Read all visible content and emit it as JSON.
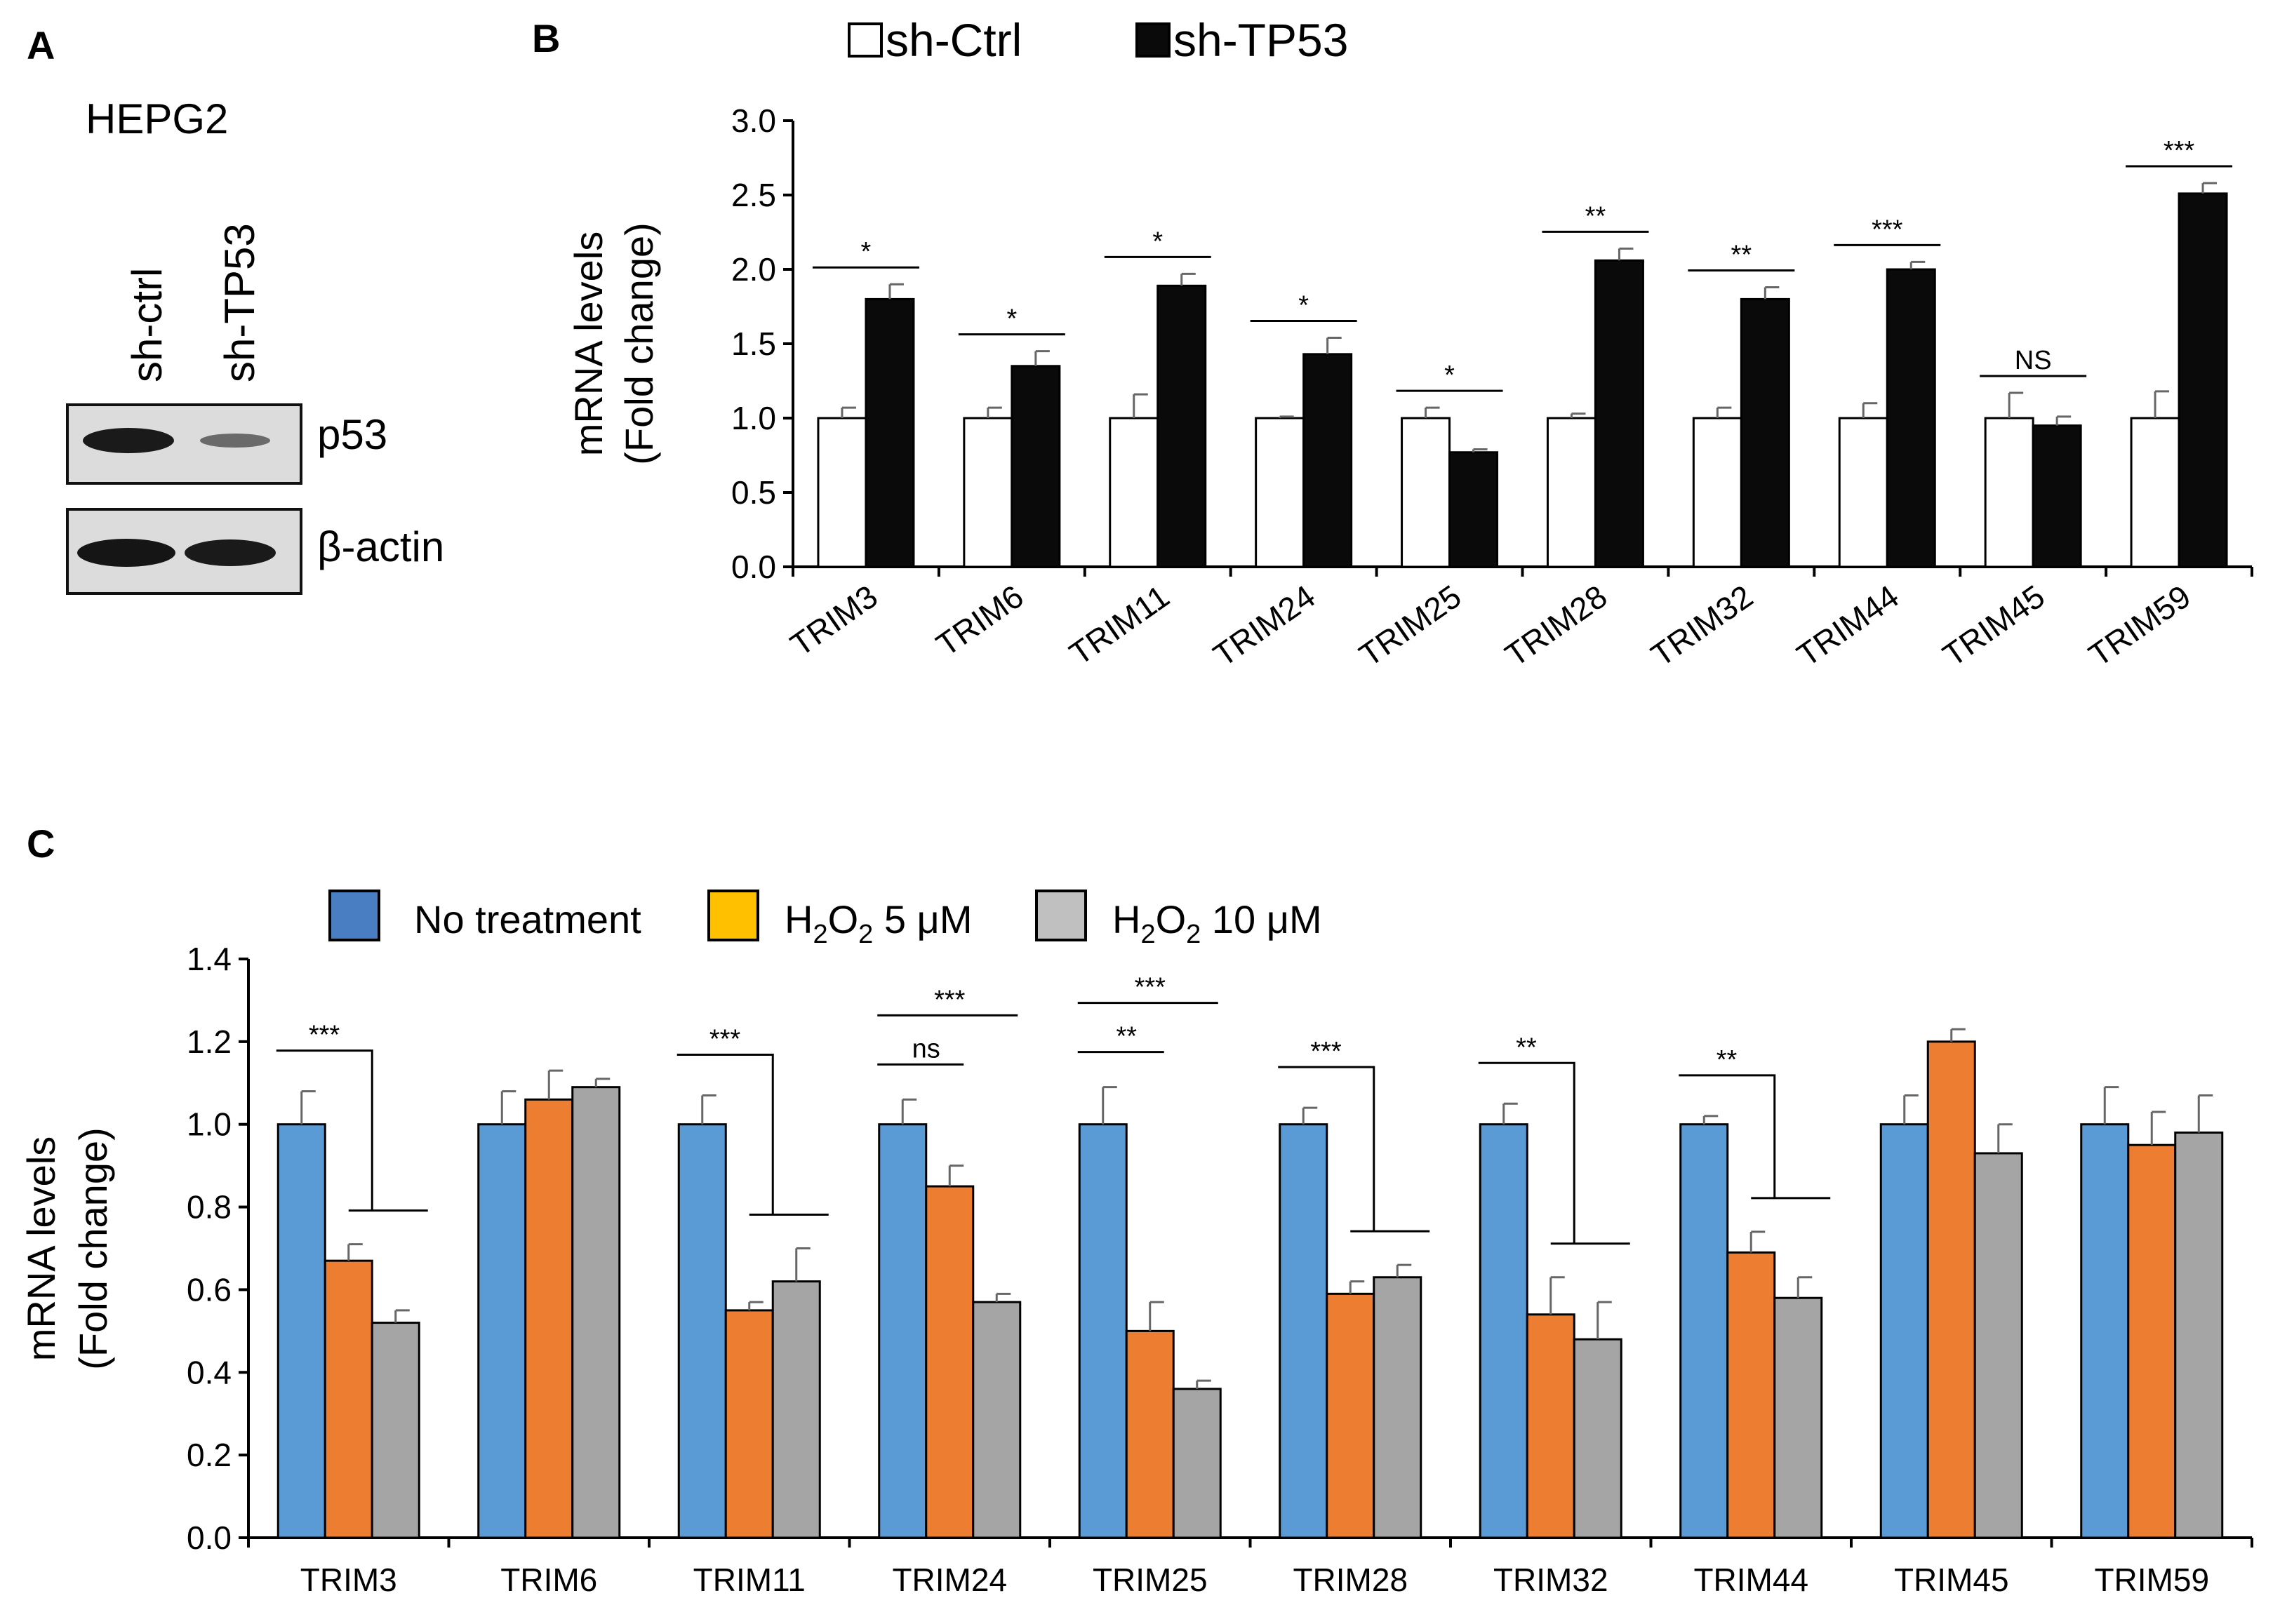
{
  "panel_labels": {
    "a": "A",
    "b": "B",
    "c": "C"
  },
  "blot": {
    "cell_line": "HEPG2",
    "lanes": [
      "sh-ctrl",
      "sh-TP53"
    ],
    "bands": [
      "p53",
      "β-actin"
    ]
  },
  "colors": {
    "b_ctrl": "#ffffff",
    "b_tp53": "#0a0a0a",
    "c_none": "#5b9bd5",
    "c_h5": "#ed7d31",
    "c_h10": "#a5a5a5",
    "c_legend_none": "#4a7ec2",
    "c_legend_h5": "#ffc000",
    "c_legend_h10": "#c0c0c0"
  },
  "chart_data": [
    {
      "type": "bar",
      "panel": "B",
      "ylabel": [
        "mRNA levels",
        "(Fold change)"
      ],
      "ylim": [
        0,
        3.0
      ],
      "yticks": [
        "0.0",
        "0.5",
        "1.0",
        "1.5",
        "2.0",
        "2.5",
        "3.0"
      ],
      "categories": [
        "TRIM3",
        "TRIM6",
        "TRIM11",
        "TRIM24",
        "TRIM25",
        "TRIM28",
        "TRIM32",
        "TRIM44",
        "TRIM45",
        "TRIM59"
      ],
      "series": [
        {
          "name": "sh-Ctrl",
          "values": [
            1.0,
            1.0,
            1.0,
            1.0,
            1.0,
            1.0,
            1.0,
            1.0,
            1.0,
            1.0
          ],
          "errors": [
            0.07,
            0.07,
            0.16,
            0.01,
            0.07,
            0.03,
            0.07,
            0.1,
            0.17,
            0.18
          ]
        },
        {
          "name": "sh-TP53",
          "values": [
            1.8,
            1.35,
            1.89,
            1.43,
            0.77,
            2.06,
            1.8,
            2.0,
            0.95,
            2.51
          ],
          "errors": [
            0.1,
            0.1,
            0.08,
            0.11,
            0.02,
            0.08,
            0.08,
            0.05,
            0.06,
            0.07
          ]
        }
      ],
      "significance": [
        "*",
        "*",
        "*",
        "*",
        "*",
        "**",
        "**",
        "***",
        "NS",
        "***"
      ]
    },
    {
      "type": "bar",
      "panel": "C",
      "ylabel": [
        "mRNA levels",
        "(Fold change)"
      ],
      "ylim": [
        0,
        1.4
      ],
      "yticks": [
        "0.0",
        "0.2",
        "0.4",
        "0.6",
        "0.8",
        "1.0",
        "1.2",
        "1.4"
      ],
      "categories": [
        "TRIM3",
        "TRIM6",
        "TRIM11",
        "TRIM24",
        "TRIM25",
        "TRIM28",
        "TRIM32",
        "TRIM44",
        "TRIM45",
        "TRIM59"
      ],
      "series": [
        {
          "name": "No treatment",
          "values": [
            1.0,
            1.0,
            1.0,
            1.0,
            1.0,
            1.0,
            1.0,
            1.0,
            1.0,
            1.0
          ],
          "errors": [
            0.08,
            0.08,
            0.07,
            0.06,
            0.09,
            0.04,
            0.05,
            0.02,
            0.07,
            0.09
          ]
        },
        {
          "name": "H2O2 5 μM",
          "values": [
            0.67,
            1.06,
            0.55,
            0.85,
            0.5,
            0.59,
            0.54,
            0.69,
            1.2,
            0.95
          ],
          "errors": [
            0.04,
            0.07,
            0.02,
            0.05,
            0.07,
            0.03,
            0.09,
            0.05,
            0.03,
            0.08
          ]
        },
        {
          "name": "H2O2 10 μM",
          "values": [
            0.52,
            1.09,
            0.62,
            0.57,
            0.36,
            0.63,
            0.48,
            0.58,
            0.93,
            0.98
          ],
          "errors": [
            0.03,
            0.02,
            0.08,
            0.02,
            0.02,
            0.03,
            0.09,
            0.05,
            0.07,
            0.09
          ]
        }
      ],
      "legend_parts": {
        "none": "No treatment",
        "h5": {
          "pre": "H",
          "sub": "2",
          "mid": "O",
          "sub2": "2",
          "post": " 5 μM"
        },
        "h10": {
          "pre": "H",
          "sub": "2",
          "mid": "O",
          "sub2": "2",
          "post": " 10 μM"
        }
      },
      "significance": [
        {
          "category": "TRIM3",
          "label": "***",
          "kind": "bracket"
        },
        {
          "category": "TRIM11",
          "label": "***",
          "kind": "bracket"
        },
        {
          "category": "TRIM24",
          "label": "***",
          "kind": "line-wide"
        },
        {
          "category": "TRIM24",
          "label": "ns",
          "kind": "line-narrow"
        },
        {
          "category": "TRIM25",
          "label": "***",
          "kind": "line-wide"
        },
        {
          "category": "TRIM25",
          "label": "**",
          "kind": "line-narrow"
        },
        {
          "category": "TRIM28",
          "label": "***",
          "kind": "bracket"
        },
        {
          "category": "TRIM32",
          "label": "**",
          "kind": "bracket"
        },
        {
          "category": "TRIM44",
          "label": "**",
          "kind": "bracket"
        }
      ]
    }
  ]
}
